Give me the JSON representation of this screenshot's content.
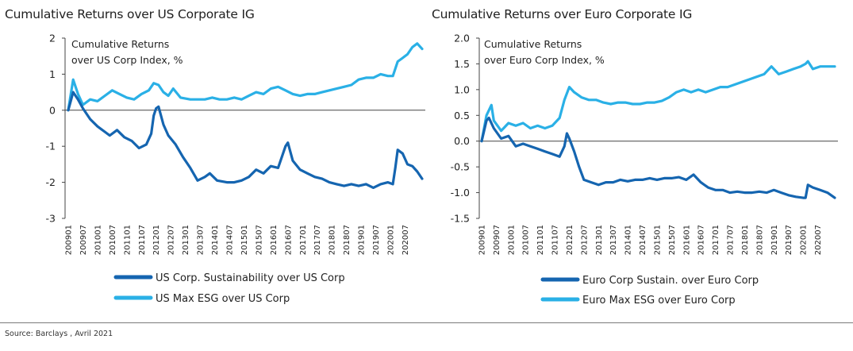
{
  "source": "Source: Barclays , Avril 2021",
  "colors": {
    "dark_series": "#1565b0",
    "light_series": "#2ab0e6",
    "axis": "#444444"
  },
  "chart_data": [
    {
      "type": "line",
      "title": "Cumulative Returns over US Corporate IG",
      "ylabel": "Cumulative Returns\nover US Corp Index, %",
      "ylabel_lines": [
        "Cumulative Returns",
        "over US Corp Index, %"
      ],
      "ylim": [
        -3,
        2
      ],
      "yticks": [
        2,
        1,
        0,
        -1,
        -2,
        -3
      ],
      "ytick_labels": [
        "2",
        "1",
        "0",
        "-1",
        "-2",
        "-3"
      ],
      "x_tick_labels": [
        "200901",
        "200907",
        "201001",
        "201007",
        "201101",
        "201107",
        "201201",
        "201207",
        "201301",
        "201307",
        "201401",
        "201407",
        "201501",
        "201507",
        "201601",
        "201607",
        "201701",
        "201707",
        "201801",
        "201807",
        "201901",
        "201907",
        "202001",
        "202007"
      ],
      "x_start": "2009-01",
      "x_end": "2021-02",
      "grid": false,
      "legend_position": "bottom",
      "series": [
        {
          "name": "US Corp. Sustainability over US Corp",
          "color": "#1565b0",
          "points": [
            [
              "2009-01",
              0
            ],
            [
              "2009-03",
              0.5
            ],
            [
              "2009-05",
              0.3
            ],
            [
              "2009-07",
              0.05
            ],
            [
              "2009-10",
              -0.25
            ],
            [
              "2010-01",
              -0.45
            ],
            [
              "2010-04",
              -0.6
            ],
            [
              "2010-06",
              -0.7
            ],
            [
              "2010-09",
              -0.55
            ],
            [
              "2010-12",
              -0.75
            ],
            [
              "2011-03",
              -0.85
            ],
            [
              "2011-06",
              -1.05
            ],
            [
              "2011-09",
              -0.95
            ],
            [
              "2011-11",
              -0.65
            ],
            [
              "2011-12",
              -0.15
            ],
            [
              "2012-01",
              0.05
            ],
            [
              "2012-02",
              0.1
            ],
            [
              "2012-04",
              -0.4
            ],
            [
              "2012-06",
              -0.7
            ],
            [
              "2012-09",
              -0.95
            ],
            [
              "2012-12",
              -1.3
            ],
            [
              "2013-03",
              -1.6
            ],
            [
              "2013-06",
              -1.95
            ],
            [
              "2013-09",
              -1.85
            ],
            [
              "2013-11",
              -1.75
            ],
            [
              "2014-02",
              -1.95
            ],
            [
              "2014-06",
              -2.0
            ],
            [
              "2014-09",
              -2.0
            ],
            [
              "2014-12",
              -1.95
            ],
            [
              "2015-03",
              -1.85
            ],
            [
              "2015-06",
              -1.65
            ],
            [
              "2015-09",
              -1.75
            ],
            [
              "2015-12",
              -1.55
            ],
            [
              "2016-03",
              -1.6
            ],
            [
              "2016-06",
              -1.0
            ],
            [
              "2016-07",
              -0.9
            ],
            [
              "2016-09",
              -1.4
            ],
            [
              "2016-12",
              -1.65
            ],
            [
              "2017-03",
              -1.75
            ],
            [
              "2017-06",
              -1.85
            ],
            [
              "2017-09",
              -1.9
            ],
            [
              "2017-12",
              -2.0
            ],
            [
              "2018-03",
              -2.05
            ],
            [
              "2018-06",
              -2.1
            ],
            [
              "2018-09",
              -2.05
            ],
            [
              "2018-12",
              -2.1
            ],
            [
              "2019-03",
              -2.05
            ],
            [
              "2019-06",
              -2.15
            ],
            [
              "2019-09",
              -2.05
            ],
            [
              "2019-12",
              -2.0
            ],
            [
              "2020-02",
              -2.05
            ],
            [
              "2020-03",
              -1.6
            ],
            [
              "2020-04",
              -1.1
            ],
            [
              "2020-06",
              -1.2
            ],
            [
              "2020-08",
              -1.5
            ],
            [
              "2020-10",
              -1.55
            ],
            [
              "2020-12",
              -1.7
            ],
            [
              "2021-02",
              -1.9
            ]
          ]
        },
        {
          "name": "US Max ESG over US Corp",
          "color": "#2ab0e6",
          "points": [
            [
              "2009-01",
              0
            ],
            [
              "2009-03",
              0.85
            ],
            [
              "2009-05",
              0.45
            ],
            [
              "2009-07",
              0.15
            ],
            [
              "2009-10",
              0.3
            ],
            [
              "2010-01",
              0.25
            ],
            [
              "2010-04",
              0.4
            ],
            [
              "2010-07",
              0.55
            ],
            [
              "2010-10",
              0.45
            ],
            [
              "2011-01",
              0.35
            ],
            [
              "2011-04",
              0.3
            ],
            [
              "2011-07",
              0.45
            ],
            [
              "2011-10",
              0.55
            ],
            [
              "2011-12",
              0.75
            ],
            [
              "2012-02",
              0.7
            ],
            [
              "2012-04",
              0.5
            ],
            [
              "2012-06",
              0.4
            ],
            [
              "2012-08",
              0.6
            ],
            [
              "2012-11",
              0.35
            ],
            [
              "2013-03",
              0.3
            ],
            [
              "2013-06",
              0.3
            ],
            [
              "2013-09",
              0.3
            ],
            [
              "2013-12",
              0.35
            ],
            [
              "2014-03",
              0.3
            ],
            [
              "2014-06",
              0.3
            ],
            [
              "2014-09",
              0.35
            ],
            [
              "2014-12",
              0.3
            ],
            [
              "2015-03",
              0.4
            ],
            [
              "2015-06",
              0.5
            ],
            [
              "2015-09",
              0.45
            ],
            [
              "2015-12",
              0.6
            ],
            [
              "2016-03",
              0.65
            ],
            [
              "2016-06",
              0.55
            ],
            [
              "2016-09",
              0.45
            ],
            [
              "2016-12",
              0.4
            ],
            [
              "2017-03",
              0.45
            ],
            [
              "2017-06",
              0.45
            ],
            [
              "2017-09",
              0.5
            ],
            [
              "2017-12",
              0.55
            ],
            [
              "2018-03",
              0.6
            ],
            [
              "2018-06",
              0.65
            ],
            [
              "2018-09",
              0.7
            ],
            [
              "2018-12",
              0.85
            ],
            [
              "2019-03",
              0.9
            ],
            [
              "2019-06",
              0.9
            ],
            [
              "2019-09",
              1.0
            ],
            [
              "2019-12",
              0.95
            ],
            [
              "2020-02",
              0.95
            ],
            [
              "2020-04",
              1.35
            ],
            [
              "2020-06",
              1.45
            ],
            [
              "2020-08",
              1.55
            ],
            [
              "2020-10",
              1.75
            ],
            [
              "2020-12",
              1.85
            ],
            [
              "2021-02",
              1.7
            ]
          ]
        }
      ]
    },
    {
      "type": "line",
      "title": "Cumulative Returns over Euro Corporate IG",
      "ylabel": "Cumulative Returns\nover Euro Corp Index, %",
      "ylabel_lines": [
        "Cumulative Returns",
        "over Euro Corp Index, %"
      ],
      "ylim": [
        -1.5,
        2.0
      ],
      "yticks": [
        2.0,
        1.5,
        1.0,
        0.5,
        0.0,
        -0.5,
        -1.0,
        -1.5
      ],
      "ytick_labels": [
        "2.0",
        "1.5",
        "1.0",
        "0.5",
        "0.0",
        "-0.5",
        "-1.0",
        "-1.5"
      ],
      "x_tick_labels": [
        "200901",
        "200907",
        "201001",
        "201007",
        "201101",
        "201107",
        "201201",
        "201207",
        "201301",
        "201307",
        "201401",
        "201407",
        "201501",
        "201507",
        "201601",
        "201607",
        "201701",
        "201707",
        "201801",
        "201807",
        "201901",
        "201907",
        "202001",
        "202007"
      ],
      "x_start": "2009-01",
      "x_end": "2021-02",
      "grid": false,
      "legend_position": "bottom",
      "series": [
        {
          "name": "Euro Corp Sustain. over Euro Corp",
          "color": "#1565b0",
          "points": [
            [
              "2009-01",
              0
            ],
            [
              "2009-03",
              0.4
            ],
            [
              "2009-04",
              0.45
            ],
            [
              "2009-06",
              0.25
            ],
            [
              "2009-09",
              0.05
            ],
            [
              "2009-12",
              0.1
            ],
            [
              "2010-03",
              -0.1
            ],
            [
              "2010-06",
              -0.05
            ],
            [
              "2010-09",
              -0.1
            ],
            [
              "2010-12",
              -0.15
            ],
            [
              "2011-03",
              -0.2
            ],
            [
              "2011-06",
              -0.25
            ],
            [
              "2011-09",
              -0.3
            ],
            [
              "2011-11",
              -0.1
            ],
            [
              "2011-12",
              0.15
            ],
            [
              "2012-01",
              0.05
            ],
            [
              "2012-03",
              -0.2
            ],
            [
              "2012-05",
              -0.5
            ],
            [
              "2012-07",
              -0.75
            ],
            [
              "2012-10",
              -0.8
            ],
            [
              "2013-01",
              -0.85
            ],
            [
              "2013-04",
              -0.8
            ],
            [
              "2013-07",
              -0.8
            ],
            [
              "2013-10",
              -0.75
            ],
            [
              "2014-01",
              -0.78
            ],
            [
              "2014-04",
              -0.75
            ],
            [
              "2014-07",
              -0.75
            ],
            [
              "2014-10",
              -0.72
            ],
            [
              "2015-01",
              -0.75
            ],
            [
              "2015-04",
              -0.72
            ],
            [
              "2015-07",
              -0.72
            ],
            [
              "2015-10",
              -0.7
            ],
            [
              "2016-01",
              -0.75
            ],
            [
              "2016-04",
              -0.65
            ],
            [
              "2016-07",
              -0.8
            ],
            [
              "2016-10",
              -0.9
            ],
            [
              "2017-01",
              -0.95
            ],
            [
              "2017-04",
              -0.95
            ],
            [
              "2017-07",
              -1.0
            ],
            [
              "2017-10",
              -0.98
            ],
            [
              "2018-01",
              -1.0
            ],
            [
              "2018-04",
              -1.0
            ],
            [
              "2018-07",
              -0.98
            ],
            [
              "2018-10",
              -1.0
            ],
            [
              "2019-01",
              -0.95
            ],
            [
              "2019-04",
              -1.0
            ],
            [
              "2019-07",
              -1.05
            ],
            [
              "2019-10",
              -1.08
            ],
            [
              "2020-01",
              -1.1
            ],
            [
              "2020-02",
              -1.1
            ],
            [
              "2020-03",
              -0.85
            ],
            [
              "2020-05",
              -0.9
            ],
            [
              "2020-08",
              -0.95
            ],
            [
              "2020-11",
              -1.0
            ],
            [
              "2021-02",
              -1.1
            ]
          ]
        },
        {
          "name": "Euro Max ESG over Euro Corp",
          "color": "#2ab0e6",
          "points": [
            [
              "2009-01",
              0
            ],
            [
              "2009-03",
              0.5
            ],
            [
              "2009-05",
              0.7
            ],
            [
              "2009-06",
              0.4
            ],
            [
              "2009-09",
              0.2
            ],
            [
              "2009-12",
              0.35
            ],
            [
              "2010-03",
              0.3
            ],
            [
              "2010-06",
              0.35
            ],
            [
              "2010-09",
              0.25
            ],
            [
              "2010-12",
              0.3
            ],
            [
              "2011-03",
              0.25
            ],
            [
              "2011-06",
              0.3
            ],
            [
              "2011-09",
              0.45
            ],
            [
              "2011-11",
              0.8
            ],
            [
              "2012-01",
              1.05
            ],
            [
              "2012-03",
              0.95
            ],
            [
              "2012-06",
              0.85
            ],
            [
              "2012-09",
              0.8
            ],
            [
              "2012-12",
              0.8
            ],
            [
              "2013-03",
              0.75
            ],
            [
              "2013-06",
              0.72
            ],
            [
              "2013-09",
              0.75
            ],
            [
              "2013-12",
              0.75
            ],
            [
              "2014-03",
              0.72
            ],
            [
              "2014-06",
              0.72
            ],
            [
              "2014-09",
              0.75
            ],
            [
              "2014-12",
              0.75
            ],
            [
              "2015-03",
              0.78
            ],
            [
              "2015-06",
              0.85
            ],
            [
              "2015-09",
              0.95
            ],
            [
              "2015-12",
              1.0
            ],
            [
              "2016-03",
              0.95
            ],
            [
              "2016-06",
              1.0
            ],
            [
              "2016-09",
              0.95
            ],
            [
              "2016-12",
              1.0
            ],
            [
              "2017-03",
              1.05
            ],
            [
              "2017-06",
              1.05
            ],
            [
              "2017-09",
              1.1
            ],
            [
              "2017-12",
              1.15
            ],
            [
              "2018-03",
              1.2
            ],
            [
              "2018-06",
              1.25
            ],
            [
              "2018-09",
              1.3
            ],
            [
              "2018-12",
              1.45
            ],
            [
              "2019-03",
              1.3
            ],
            [
              "2019-06",
              1.35
            ],
            [
              "2019-09",
              1.4
            ],
            [
              "2019-12",
              1.45
            ],
            [
              "2020-02",
              1.5
            ],
            [
              "2020-03",
              1.55
            ],
            [
              "2020-05",
              1.4
            ],
            [
              "2020-08",
              1.45
            ],
            [
              "2020-11",
              1.45
            ],
            [
              "2021-02",
              1.45
            ]
          ]
        }
      ]
    }
  ]
}
